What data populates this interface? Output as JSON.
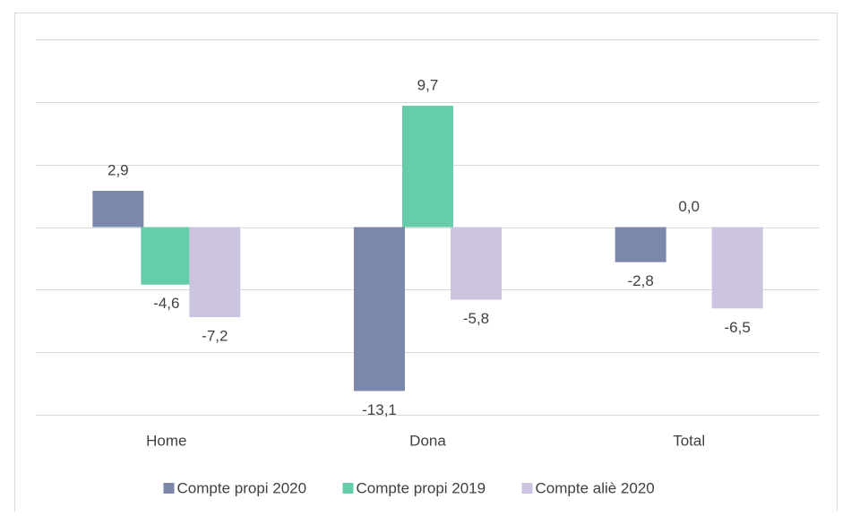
{
  "chart_data": {
    "type": "bar",
    "categories": [
      "Home",
      "Dona",
      "Total"
    ],
    "series": [
      {
        "name": "Compte propi 2020",
        "color": "#7b88ab",
        "values": [
          2.9,
          -13.1,
          -2.8
        ],
        "value_labels": [
          "2,9",
          "-13,1",
          "-2,8"
        ]
      },
      {
        "name": "Compte propi 2019",
        "color": "#66cdaa",
        "values": [
          -4.6,
          9.7,
          0.0
        ],
        "value_labels": [
          "-4,6",
          "9,7",
          "0,0"
        ]
      },
      {
        "name": "Compte aliè 2020",
        "color": "#ccc3e0",
        "values": [
          -7.2,
          -5.8,
          -6.5
        ],
        "value_labels": [
          "-7,2",
          "-5,8",
          "-6,5"
        ]
      }
    ],
    "ylim": [
      -15,
      15
    ],
    "yticks": [
      -15,
      -10,
      -5,
      0,
      5,
      10,
      15
    ],
    "grid": true,
    "legend": "bottom"
  }
}
